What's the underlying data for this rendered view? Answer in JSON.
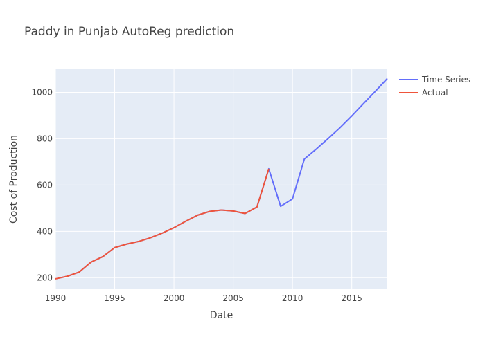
{
  "chart_data": {
    "type": "line",
    "title": "Paddy in Punjab AutoReg prediction",
    "xlabel": "Date",
    "ylabel": "Cost of Production",
    "xlim": [
      1990,
      2018
    ],
    "ylim": [
      150,
      1100
    ],
    "xticks": [
      1990,
      1995,
      2000,
      2005,
      2010,
      2015
    ],
    "yticks": [
      200,
      400,
      600,
      800,
      1000
    ],
    "grid": true,
    "legend_position": "top-right",
    "series": [
      {
        "name": "Time Series",
        "color": "#636efa",
        "x": [
          1990,
          1991,
          1992,
          1993,
          1994,
          1995,
          1996,
          1997,
          1998,
          1999,
          2000,
          2001,
          2002,
          2003,
          2004,
          2005,
          2006,
          2007,
          2008,
          2009,
          2010,
          2011,
          2012,
          2013,
          2014,
          2015,
          2016,
          2017,
          2018
        ],
        "y": [
          195,
          206,
          224,
          267,
          291,
          330,
          345,
          356,
          372,
          392,
          416,
          444,
          470,
          486,
          492,
          488,
          477,
          505,
          670,
          508,
          540,
          712,
          755,
          800,
          847,
          898,
          952,
          1005,
          1060
        ]
      },
      {
        "name": "Actual",
        "color": "#ef553b",
        "x": [
          1990,
          1991,
          1992,
          1993,
          1994,
          1995,
          1996,
          1997,
          1998,
          1999,
          2000,
          2001,
          2002,
          2003,
          2004,
          2005,
          2006,
          2007,
          2008
        ],
        "y": [
          195,
          206,
          224,
          267,
          291,
          330,
          345,
          356,
          372,
          392,
          416,
          444,
          470,
          486,
          492,
          488,
          477,
          505,
          670
        ]
      }
    ]
  }
}
